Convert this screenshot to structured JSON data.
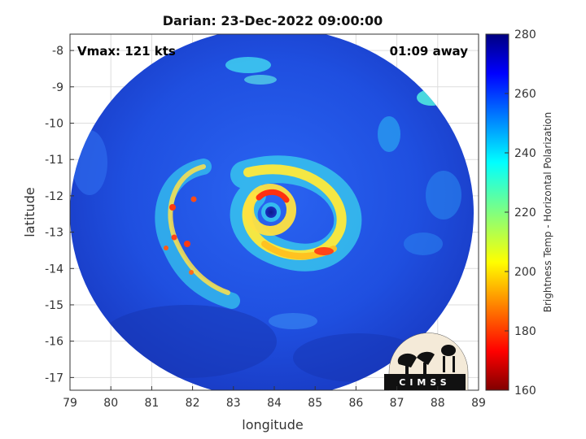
{
  "figure": {
    "title": "Darian: 23-Dec-2022 09:00:00",
    "vmax_label": "Vmax: 121 kts",
    "time_away": "01:09 away",
    "xlabel": "longitude",
    "ylabel": "latitude",
    "colorbar_label": "Brightness Temp - Horizontal Polarization",
    "logo_text": "CIMSS"
  },
  "chart_data": {
    "type": "heatmap",
    "title": "Darian: 23-Dec-2022 09:00:00",
    "xlabel": "longitude",
    "ylabel": "latitude",
    "xlim": [
      79,
      89
    ],
    "ylim": [
      -17.35,
      -7.55
    ],
    "x_ticks": [
      79,
      80,
      81,
      82,
      83,
      84,
      85,
      86,
      87,
      88,
      89
    ],
    "y_ticks": [
      -8,
      -9,
      -10,
      -11,
      -12,
      -13,
      -14,
      -15,
      -16,
      -17
    ],
    "grid": true,
    "storm_center": {
      "lon": 84.0,
      "lat": -12.4
    },
    "colorbar": {
      "label": "Brightness Temp - Horizontal Polarization",
      "range": [
        160,
        280
      ],
      "ticks": [
        280,
        260,
        240,
        220,
        200,
        180,
        160
      ],
      "colormap": "jet"
    }
  },
  "colors": {
    "background_fill": "#1f4fe0",
    "cold_cloud": "#ff3a10",
    "eye": "#0a1a8c"
  }
}
